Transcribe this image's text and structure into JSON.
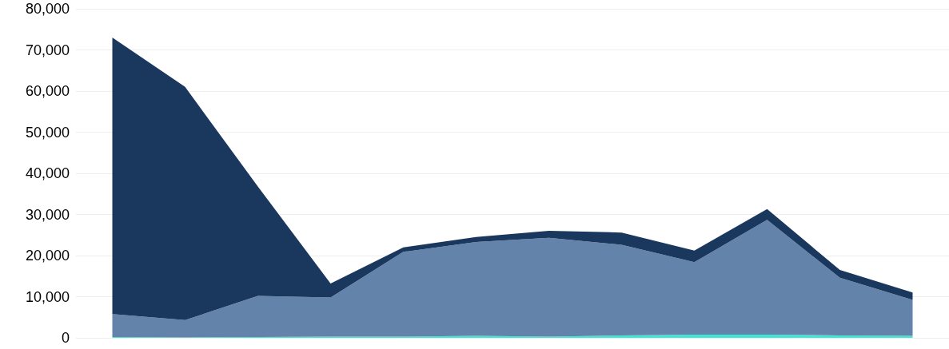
{
  "chart_data": {
    "type": "area",
    "stacked": true,
    "categories": [
      null,
      null,
      null,
      null,
      null,
      null,
      null,
      null,
      null,
      null,
      null,
      null
    ],
    "series": [
      {
        "color": "#3fe6d2",
        "values": [
          200,
          100,
          200,
          300,
          300,
          500,
          300,
          600,
          800,
          800,
          600,
          500
        ]
      },
      {
        "color": "#6383ab",
        "values": [
          5600,
          4200,
          10000,
          9500,
          20600,
          22800,
          24000,
          22000,
          17600,
          27900,
          14000,
          8700
        ]
      },
      {
        "color": "#1a375e",
        "values": [
          67200,
          56700,
          26600,
          3400,
          1100,
          1200,
          1700,
          3000,
          2800,
          2600,
          1900,
          1800
        ]
      }
    ],
    "ylim": [
      0,
      80000
    ],
    "yticks": [
      0,
      {
        "value": 10000,
        "label": "10,000"
      },
      {
        "value": 20000,
        "label": "20,000"
      },
      {
        "value": 30000,
        "label": "30,000"
      },
      {
        "value": 40000,
        "label": "40,000"
      },
      {
        "value": 50000,
        "label": "50,000"
      },
      {
        "value": 60000,
        "label": "60,000"
      },
      {
        "value": 70000,
        "label": "70,000"
      },
      {
        "value": 80000,
        "label": "80,000"
      }
    ],
    "grid": "y",
    "tick_labels": "y"
  }
}
